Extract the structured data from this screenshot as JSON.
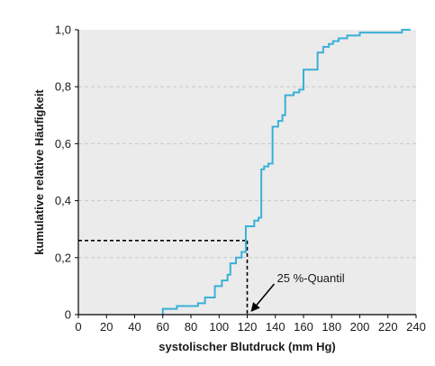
{
  "chart_data": {
    "type": "line",
    "step": true,
    "xlabel": "systolischer Blutdruck (mm Hg)",
    "ylabel": "kumulative relative Häufigkeit",
    "xlim": [
      0,
      240
    ],
    "ylim": [
      0,
      1
    ],
    "x_ticks": [
      "0",
      "20",
      "40",
      "60",
      "80",
      "100",
      "120",
      "140",
      "160",
      "180",
      "200",
      "220",
      "240"
    ],
    "x_tick_values": [
      0,
      20,
      40,
      60,
      80,
      100,
      120,
      140,
      160,
      180,
      200,
      220,
      240
    ],
    "y_ticks": [
      "0",
      "0,2",
      "0,4",
      "0,6",
      "0,8",
      "1,0"
    ],
    "y_tick_values": [
      0,
      0.2,
      0.4,
      0.6,
      0.8,
      1.0
    ],
    "grid": "horizontal-dashed",
    "colors": {
      "series": "#3ab0d8",
      "plot_background": "#ebebeb",
      "grid": "#c9c9c9",
      "reference": "#000000"
    },
    "series": [
      {
        "points": [
          [
            60,
            0
          ],
          [
            60,
            0.02
          ],
          [
            70,
            0.02
          ],
          [
            70,
            0.03
          ],
          [
            85,
            0.03
          ],
          [
            85,
            0.04
          ],
          [
            90,
            0.04
          ],
          [
            90,
            0.06
          ],
          [
            97,
            0.06
          ],
          [
            97,
            0.1
          ],
          [
            102,
            0.1
          ],
          [
            102,
            0.12
          ],
          [
            106,
            0.12
          ],
          [
            106,
            0.14
          ],
          [
            108,
            0.14
          ],
          [
            108,
            0.18
          ],
          [
            112,
            0.18
          ],
          [
            112,
            0.2
          ],
          [
            116,
            0.2
          ],
          [
            116,
            0.22
          ],
          [
            119,
            0.22
          ],
          [
            119,
            0.31
          ],
          [
            125,
            0.31
          ],
          [
            125,
            0.33
          ],
          [
            128,
            0.33
          ],
          [
            128,
            0.34
          ],
          [
            130,
            0.34
          ],
          [
            130,
            0.51
          ],
          [
            132,
            0.51
          ],
          [
            132,
            0.52
          ],
          [
            135,
            0.52
          ],
          [
            135,
            0.53
          ],
          [
            138,
            0.53
          ],
          [
            138,
            0.66
          ],
          [
            142,
            0.66
          ],
          [
            142,
            0.68
          ],
          [
            145,
            0.68
          ],
          [
            145,
            0.7
          ],
          [
            147,
            0.7
          ],
          [
            147,
            0.77
          ],
          [
            153,
            0.77
          ],
          [
            153,
            0.78
          ],
          [
            157,
            0.78
          ],
          [
            157,
            0.79
          ],
          [
            160,
            0.79
          ],
          [
            160,
            0.86
          ],
          [
            170,
            0.86
          ],
          [
            170,
            0.92
          ],
          [
            174,
            0.92
          ],
          [
            174,
            0.94
          ],
          [
            178,
            0.94
          ],
          [
            178,
            0.95
          ],
          [
            181,
            0.95
          ],
          [
            181,
            0.96
          ],
          [
            185,
            0.96
          ],
          [
            185,
            0.97
          ],
          [
            191,
            0.97
          ],
          [
            191,
            0.98
          ],
          [
            200,
            0.98
          ],
          [
            200,
            0.99
          ],
          [
            230,
            0.99
          ],
          [
            230,
            1.0
          ],
          [
            236,
            1.0
          ]
        ]
      }
    ],
    "reference": {
      "x": 120,
      "y": 0.26
    },
    "annotation": {
      "text": "25 %-Quantil",
      "x": 120,
      "y": 0
    }
  }
}
